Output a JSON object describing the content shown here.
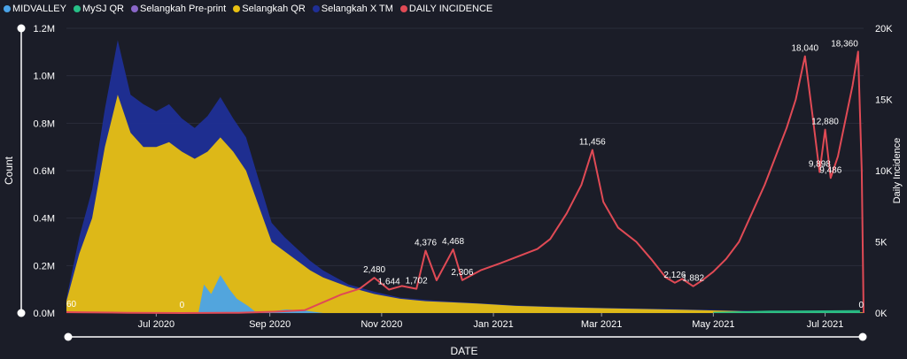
{
  "colors": {
    "background": "#1b1d28",
    "text": "#ffffff",
    "axis": "#9a9aa2"
  },
  "chart_data": {
    "type": "bar",
    "xlabel": "DATE",
    "ylabel": "Count",
    "y2label": "Daily Incidence",
    "ylim": [
      0,
      1200000
    ],
    "y2lim": [
      0,
      20000
    ],
    "y_ticks": [
      "0.0M",
      "0.2M",
      "0.4M",
      "0.6M",
      "0.8M",
      "1.0M",
      "1.2M"
    ],
    "y2_ticks": [
      "0K",
      "5K",
      "10K",
      "15K",
      "20K"
    ],
    "x_ticks": [
      "Jul 2020",
      "Sep 2020",
      "Nov 2020",
      "Jan 2021",
      "Mar 2021",
      "May 2021",
      "Jul 2021"
    ],
    "legend": [
      {
        "name": "MIDVALLEY",
        "color": "#4aa3e8"
      },
      {
        "name": "MySJ QR",
        "color": "#27c087"
      },
      {
        "name": "Selangkah Pre-print",
        "color": "#8a67c9"
      },
      {
        "name": "Selangkah QR",
        "color": "#e8c012"
      },
      {
        "name": "Selangkah X TM",
        "color": "#1f2f96"
      },
      {
        "name": "DAILY INCIDENCE",
        "color": "#e04a55"
      }
    ],
    "date_range": [
      "2020-05-13",
      "2021-07-22"
    ],
    "tick_dates": [
      "2020-07-01",
      "2020-09-01",
      "2020-11-01",
      "2021-01-01",
      "2021-03-01",
      "2021-05-01",
      "2021-07-01"
    ],
    "series": [
      {
        "name": "Selangkah QR",
        "points": [
          [
            "2020-05-13",
            50000
          ],
          [
            "2020-05-20",
            250000
          ],
          [
            "2020-05-27",
            400000
          ],
          [
            "2020-06-03",
            700000
          ],
          [
            "2020-06-10",
            920000
          ],
          [
            "2020-06-17",
            760000
          ],
          [
            "2020-06-24",
            700000
          ],
          [
            "2020-07-01",
            700000
          ],
          [
            "2020-07-08",
            720000
          ],
          [
            "2020-07-15",
            680000
          ],
          [
            "2020-07-22",
            650000
          ],
          [
            "2020-07-29",
            680000
          ],
          [
            "2020-08-05",
            740000
          ],
          [
            "2020-08-12",
            680000
          ],
          [
            "2020-08-19",
            600000
          ],
          [
            "2020-08-26",
            450000
          ],
          [
            "2020-09-02",
            300000
          ],
          [
            "2020-09-09",
            260000
          ],
          [
            "2020-09-16",
            220000
          ],
          [
            "2020-09-23",
            180000
          ],
          [
            "2020-09-30",
            150000
          ],
          [
            "2020-10-14",
            110000
          ],
          [
            "2020-10-28",
            80000
          ],
          [
            "2020-11-11",
            60000
          ],
          [
            "2020-11-25",
            50000
          ],
          [
            "2020-12-09",
            45000
          ],
          [
            "2020-12-23",
            40000
          ],
          [
            "2021-01-13",
            30000
          ],
          [
            "2021-02-03",
            25000
          ],
          [
            "2021-03-03",
            20000
          ],
          [
            "2021-04-07",
            15000
          ],
          [
            "2021-05-05",
            10000
          ],
          [
            "2021-06-02",
            5000
          ],
          [
            "2021-07-22",
            3000
          ]
        ]
      },
      {
        "name": "Selangkah X TM",
        "points": [
          [
            "2020-05-13",
            60000
          ],
          [
            "2020-05-20",
            320000
          ],
          [
            "2020-05-27",
            520000
          ],
          [
            "2020-06-03",
            860000
          ],
          [
            "2020-06-10",
            1150000
          ],
          [
            "2020-06-17",
            920000
          ],
          [
            "2020-06-24",
            880000
          ],
          [
            "2020-07-01",
            850000
          ],
          [
            "2020-07-08",
            880000
          ],
          [
            "2020-07-15",
            820000
          ],
          [
            "2020-07-22",
            780000
          ],
          [
            "2020-07-29",
            830000
          ],
          [
            "2020-08-05",
            910000
          ],
          [
            "2020-08-12",
            820000
          ],
          [
            "2020-08-19",
            740000
          ],
          [
            "2020-08-26",
            560000
          ],
          [
            "2020-09-02",
            380000
          ],
          [
            "2020-09-09",
            320000
          ],
          [
            "2020-09-16",
            270000
          ],
          [
            "2020-09-23",
            220000
          ],
          [
            "2020-09-30",
            180000
          ],
          [
            "2020-10-14",
            120000
          ],
          [
            "2020-10-28",
            90000
          ],
          [
            "2020-11-11",
            65000
          ],
          [
            "2020-11-25",
            55000
          ],
          [
            "2020-12-09",
            48000
          ],
          [
            "2020-12-23",
            42000
          ],
          [
            "2021-01-13",
            32000
          ],
          [
            "2021-02-03",
            27000
          ],
          [
            "2021-03-03",
            22000
          ],
          [
            "2021-04-07",
            17000
          ],
          [
            "2021-05-05",
            12000
          ],
          [
            "2021-06-02",
            7000
          ],
          [
            "2021-07-22",
            4000
          ]
        ]
      },
      {
        "name": "MIDVALLEY",
        "points": [
          [
            "2020-07-24",
            0
          ],
          [
            "2020-07-27",
            120000
          ],
          [
            "2020-07-31",
            80000
          ],
          [
            "2020-08-05",
            160000
          ],
          [
            "2020-08-10",
            100000
          ],
          [
            "2020-08-14",
            60000
          ],
          [
            "2020-08-20",
            30000
          ],
          [
            "2020-08-25",
            0
          ],
          [
            "2020-09-10",
            15000
          ],
          [
            "2020-09-20",
            10000
          ],
          [
            "2020-09-30",
            0
          ]
        ]
      },
      {
        "name": "MySJ QR",
        "points": [
          [
            "2021-05-01",
            5000
          ],
          [
            "2021-06-01",
            10000
          ],
          [
            "2021-07-20",
            12000
          ]
        ]
      },
      {
        "name": "DAILY INCIDENCE",
        "points": [
          [
            "2020-05-13",
            60
          ],
          [
            "2020-06-15",
            20
          ],
          [
            "2020-07-15",
            0
          ],
          [
            "2020-08-15",
            20
          ],
          [
            "2020-09-05",
            100
          ],
          [
            "2020-09-20",
            200
          ],
          [
            "2020-10-01",
            800
          ],
          [
            "2020-10-10",
            1300
          ],
          [
            "2020-10-20",
            1700
          ],
          [
            "2020-10-28",
            2480
          ],
          [
            "2020-11-05",
            1644
          ],
          [
            "2020-11-12",
            1900
          ],
          [
            "2020-11-20",
            1702
          ],
          [
            "2020-11-25",
            4376
          ],
          [
            "2020-12-01",
            2300
          ],
          [
            "2020-12-10",
            4468
          ],
          [
            "2020-12-15",
            2306
          ],
          [
            "2020-12-25",
            3000
          ],
          [
            "2021-01-05",
            3500
          ],
          [
            "2021-01-15",
            4000
          ],
          [
            "2021-01-25",
            4500
          ],
          [
            "2021-02-01",
            5200
          ],
          [
            "2021-02-10",
            7000
          ],
          [
            "2021-02-18",
            9000
          ],
          [
            "2021-02-24",
            11456
          ],
          [
            "2021-03-02",
            7800
          ],
          [
            "2021-03-10",
            6000
          ],
          [
            "2021-03-20",
            5000
          ],
          [
            "2021-03-28",
            3800
          ],
          [
            "2021-04-05",
            2500
          ],
          [
            "2021-04-10",
            2126
          ],
          [
            "2021-04-14",
            2400
          ],
          [
            "2021-04-20",
            1882
          ],
          [
            "2021-04-25",
            2300
          ],
          [
            "2021-05-01",
            2900
          ],
          [
            "2021-05-08",
            3800
          ],
          [
            "2021-05-15",
            5000
          ],
          [
            "2021-05-22",
            7000
          ],
          [
            "2021-05-29",
            9000
          ],
          [
            "2021-06-04",
            11000
          ],
          [
            "2021-06-10",
            13000
          ],
          [
            "2021-06-15",
            15000
          ],
          [
            "2021-06-20",
            18040
          ],
          [
            "2021-06-24",
            14000
          ],
          [
            "2021-06-28",
            9898
          ],
          [
            "2021-07-01",
            12880
          ],
          [
            "2021-07-04",
            9486
          ],
          [
            "2021-07-08",
            11000
          ],
          [
            "2021-07-12",
            13500
          ],
          [
            "2021-07-16",
            16000
          ],
          [
            "2021-07-19",
            18360
          ],
          [
            "2021-07-21",
            10000
          ],
          [
            "2021-07-22",
            0
          ]
        ]
      }
    ],
    "annotations": [
      {
        "date": "2020-05-13",
        "label": "60"
      },
      {
        "date": "2020-07-15",
        "label": "0"
      },
      {
        "date": "2020-10-28",
        "label": "2,480"
      },
      {
        "date": "2020-11-05",
        "label": "1,644"
      },
      {
        "date": "2020-11-20",
        "label": "1,702"
      },
      {
        "date": "2020-11-25",
        "label": "4,376"
      },
      {
        "date": "2020-12-10",
        "label": "4,468"
      },
      {
        "date": "2020-12-15",
        "label": "2,306"
      },
      {
        "date": "2021-02-24",
        "label": "11,456"
      },
      {
        "date": "2021-04-10",
        "label": "2,126"
      },
      {
        "date": "2021-04-20",
        "label": "1,882"
      },
      {
        "date": "2021-06-20",
        "label": "18,040"
      },
      {
        "date": "2021-06-28",
        "label": "9,898"
      },
      {
        "date": "2021-07-01",
        "label": "12,880"
      },
      {
        "date": "2021-07-04",
        "label": "9,486"
      },
      {
        "date": "2021-07-19",
        "label": "18,360"
      },
      {
        "date": "2021-07-22",
        "label": "0"
      }
    ]
  }
}
